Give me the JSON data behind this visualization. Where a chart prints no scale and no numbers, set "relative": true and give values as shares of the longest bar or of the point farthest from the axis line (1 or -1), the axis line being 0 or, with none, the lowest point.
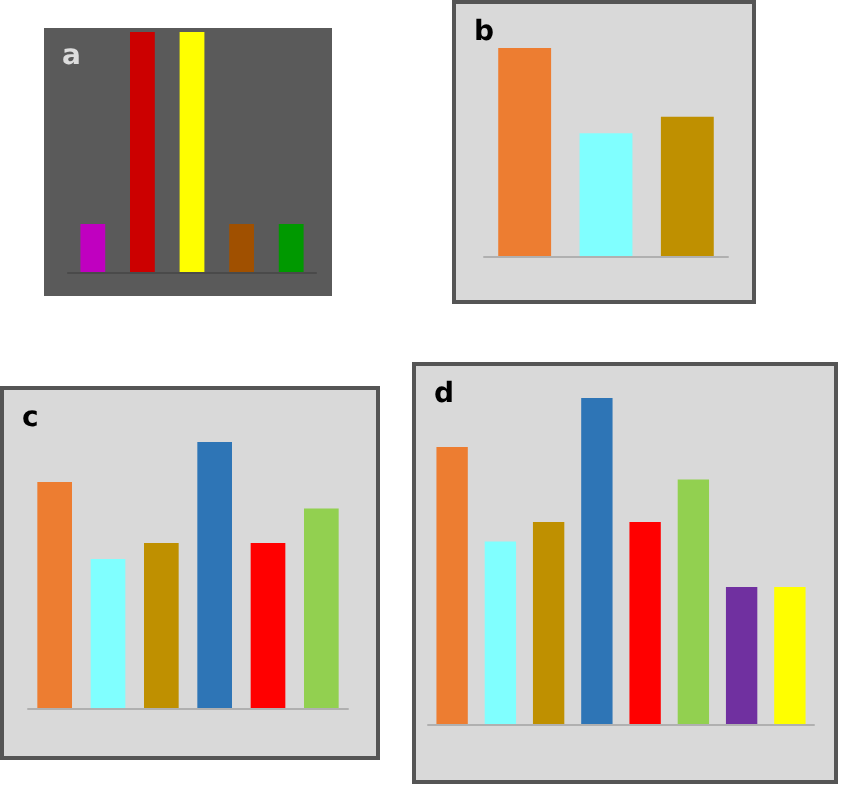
{
  "chart_data": [
    {
      "type": "bar",
      "title": "a",
      "relative": true,
      "categories": [
        null,
        null,
        null,
        null,
        null
      ],
      "values": [
        0.2,
        1,
        1,
        0.2,
        0.2
      ],
      "colors": [
        "#c000c0",
        "#cc0000",
        "#ffff00",
        "#a05000",
        "#009900"
      ]
    },
    {
      "type": "bar",
      "title": "b",
      "relative": true,
      "categories": [
        null,
        null,
        null
      ],
      "values": [
        1,
        0.59,
        0.67
      ],
      "colors": [
        "#ed7d31",
        "#80ffff",
        "#bf9000"
      ]
    },
    {
      "type": "bar",
      "title": "c",
      "relative": true,
      "categories": [
        null,
        null,
        null,
        null,
        null,
        null
      ],
      "values": [
        0.85,
        0.56,
        0.62,
        1,
        0.62,
        0.75
      ],
      "colors": [
        "#ed7d31",
        "#80ffff",
        "#bf9000",
        "#2e75b6",
        "#ff0000",
        "#92d050"
      ]
    },
    {
      "type": "bar",
      "title": "d",
      "relative": true,
      "categories": [
        null,
        null,
        null,
        null,
        null,
        null,
        null,
        null
      ],
      "values": [
        0.85,
        0.56,
        0.62,
        1,
        0.62,
        0.75,
        0.42,
        0.42
      ],
      "colors": [
        "#ed7d31",
        "#80ffff",
        "#bf9000",
        "#2e75b6",
        "#ff0000",
        "#92d050",
        "#7030a0",
        "#ffff00"
      ]
    }
  ]
}
